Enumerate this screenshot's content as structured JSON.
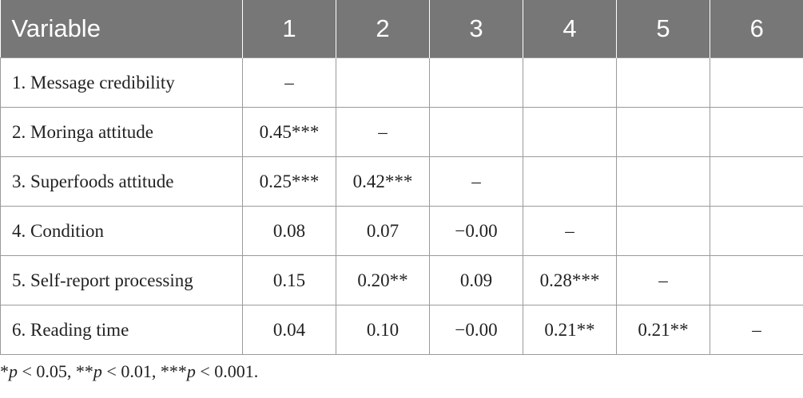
{
  "table": {
    "headers": [
      "Variable",
      "1",
      "2",
      "3",
      "4",
      "5",
      "6"
    ],
    "rows": [
      {
        "label": "1. Message credibility",
        "cells": [
          "–",
          "",
          "",
          "",
          "",
          ""
        ]
      },
      {
        "label": "2. Moringa attitude",
        "cells": [
          "0.45***",
          "–",
          "",
          "",
          "",
          ""
        ]
      },
      {
        "label": "3. Superfoods attitude",
        "cells": [
          "0.25***",
          "0.42***",
          "–",
          "",
          "",
          ""
        ]
      },
      {
        "label": "4. Condition",
        "cells": [
          "0.08",
          "0.07",
          "−0.00",
          "–",
          "",
          ""
        ]
      },
      {
        "label": "5. Self-report processing",
        "cells": [
          "0.15",
          "0.20**",
          "0.09",
          "0.28***",
          "–",
          ""
        ]
      },
      {
        "label": "6. Reading time",
        "cells": [
          "0.04",
          "0.10",
          "−0.00",
          "0.21**",
          "0.21**",
          "–"
        ]
      }
    ]
  },
  "footnote": {
    "parts": [
      {
        "stars": "*",
        "p": "p",
        "rest": " < 0.05, "
      },
      {
        "stars": "**",
        "p": "p",
        "rest": " < 0.01, "
      },
      {
        "stars": "***",
        "p": "p",
        "rest": " < 0.001."
      }
    ]
  },
  "colors": {
    "header_bg": "#777777",
    "header_text": "#ffffff",
    "grid": "#9a9a9a",
    "text": "#222222"
  }
}
